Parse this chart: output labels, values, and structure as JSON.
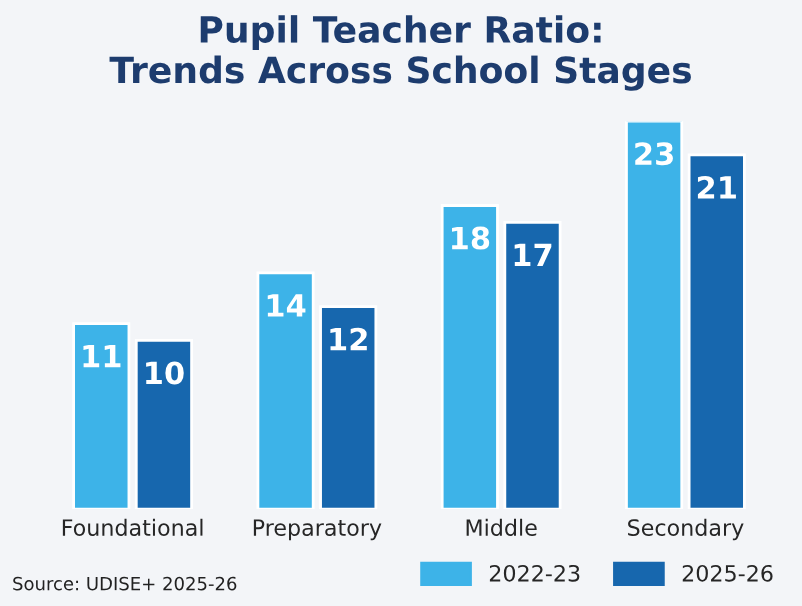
{
  "chart_data": {
    "type": "bar",
    "title": "Pupil Teacher Ratio:\nTrends Across School Stages",
    "categories": [
      "Foundational",
      "Preparatory",
      "Middle",
      "Secondary"
    ],
    "series": [
      {
        "name": "2022-23",
        "color": "#3db3e8",
        "values": [
          11,
          14,
          18,
          23
        ]
      },
      {
        "name": "2025-26",
        "color": "#1767ae",
        "values": [
          10,
          12,
          17,
          21
        ]
      }
    ],
    "data_labels": true,
    "legend": "bottom right",
    "grid": false,
    "tick_labels": "x",
    "annotations": [
      "Source: UDISE+ 2025-26"
    ]
  }
}
